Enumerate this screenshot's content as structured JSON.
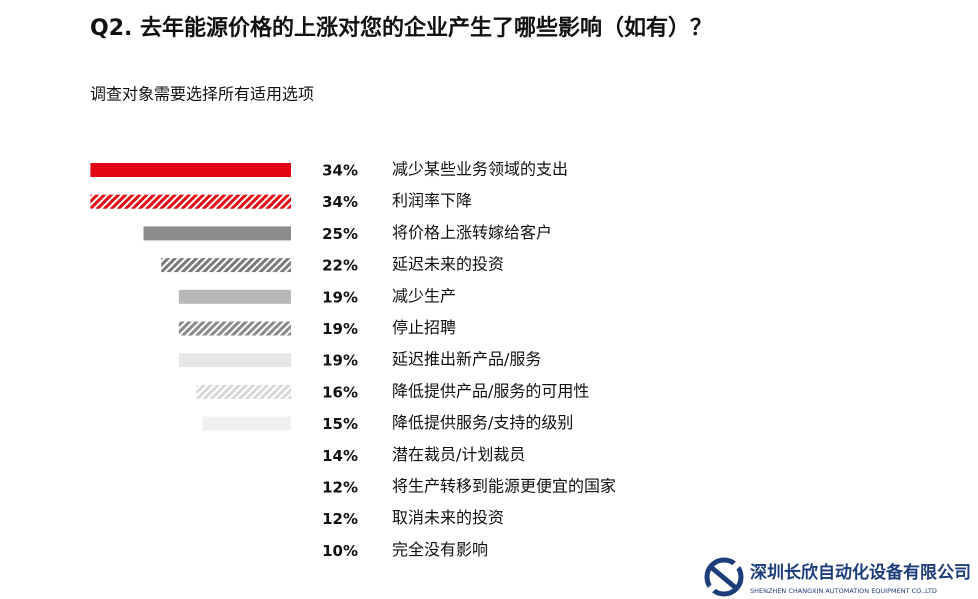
{
  "chart_data": {
    "type": "bar",
    "title": "Q2. 去年能源价格的上涨对您的企业产生了哪些影响（如有）？",
    "subtitle": "调查对象需要选择所有适用选项",
    "categories": [
      "减少某些业务领域的支出",
      "利润率下降",
      "将价格上涨转嫁给客户",
      "延迟未来的投资",
      "减少生产",
      "停止招聘",
      "延迟推出新产品/服务",
      "降低提供产品/服务的可用性",
      "降低提供服务/支持的级别",
      "潜在裁员/计划裁员",
      "将生产转移到能源更便宜的国家",
      "取消未来的投资",
      "完全没有影响"
    ],
    "values": [
      34,
      34,
      25,
      22,
      19,
      19,
      19,
      16,
      15,
      14,
      12,
      12,
      10
    ],
    "value_labels": [
      "34%",
      "34%",
      "25%",
      "22%",
      "19%",
      "19%",
      "19%",
      "16%",
      "15%",
      "14%",
      "12%",
      "12%",
      "10%"
    ],
    "colors": [
      "#e30613",
      "#e30613",
      "#8c8c8c",
      "#7a7a7a",
      "#b8b8b8",
      "#8a8a8a",
      "#e6e6e6",
      "#d8d8d8",
      "#f0f0f0",
      "#ffffff",
      "#ffffff",
      "#ffffff",
      "#ffffff"
    ],
    "hatched": [
      false,
      true,
      false,
      true,
      false,
      true,
      false,
      true,
      false,
      false,
      false,
      false,
      false
    ]
  },
  "logo": {
    "name": "深圳长欣自动化设备有限公司",
    "english": "SHENZHEN CHANGXIN AUTOMATION EQUIPMENT CO.,LTD"
  }
}
